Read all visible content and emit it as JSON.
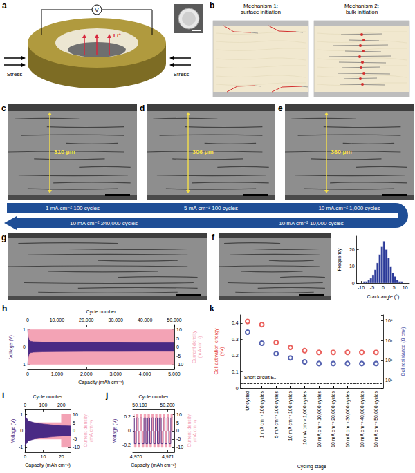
{
  "panels": [
    {
      "panel": "a",
      "type": "diagram",
      "labels": {
        "voltmeter": "V",
        "ion": "Li⁺",
        "stress_left": "Stress",
        "stress_right": "Stress"
      }
    },
    {
      "panel": "b",
      "type": "diagram",
      "titles": [
        "Mechanism 1: surface initiation",
        "Mechanism 2: bulk initiation"
      ]
    },
    {
      "panel": "c",
      "type": "micrograph",
      "thickness_label": "310 µm"
    },
    {
      "panel": "d",
      "type": "micrograph",
      "thickness_label": "306 µm"
    },
    {
      "panel": "e",
      "type": "micrograph",
      "thickness_label": "360 µm"
    },
    {
      "panel": "f",
      "type": "micrograph"
    },
    {
      "panel": "g",
      "type": "micrograph"
    }
  ],
  "cycling_sequence": [
    "1 mA cm⁻² 100 cycles",
    "5 mA cm⁻² 100 cycles",
    "10 mA cm⁻² 1,000 cycles",
    "10 mA cm⁻² 10,000 cycles",
    "10 mA cm⁻² 240,000 cycles"
  ],
  "chart_data": [
    {
      "type": "histogram",
      "xlabel": "Crack angle (°)",
      "ylabel": "Frequency",
      "color": "#2b3a99",
      "bins": [
        -9,
        -8,
        -7,
        -6,
        -5,
        -4,
        -3,
        -2,
        -1,
        0,
        1,
        2,
        3,
        4,
        5,
        6,
        7,
        8,
        9
      ],
      "counts": [
        1,
        1,
        2,
        3,
        5,
        8,
        12,
        17,
        22,
        25,
        20,
        15,
        10,
        6,
        4,
        2,
        1,
        1
      ],
      "xlim": [
        -12,
        12
      ],
      "xticks": [
        -10,
        -5,
        0,
        5,
        10
      ],
      "ylim": [
        0,
        28
      ],
      "yticks": [
        0,
        10,
        20
      ]
    },
    {
      "panel": "h",
      "type": "line",
      "xlabel": "Capacity (mAh cm⁻²)",
      "x2label": "Cycle number",
      "ylabel": "Voltage (V)",
      "y2label": "Current density (mA cm⁻²)",
      "xlim": [
        0,
        5000
      ],
      "xticks": [
        0,
        {
          "value": 1000,
          "label": "1,000"
        },
        {
          "value": 2000,
          "label": "2,000"
        },
        {
          "value": 3000,
          "label": "3,000"
        },
        {
          "value": 4000,
          "label": "4,000"
        },
        {
          "value": 5000,
          "label": "5,000"
        }
      ],
      "x2lim": [
        0,
        50000
      ],
      "x2ticks": [
        0,
        {
          "value": 10000,
          "label": "10,000"
        },
        {
          "value": 20000,
          "label": "20,000"
        },
        {
          "value": 30000,
          "label": "30,000"
        },
        {
          "value": 40000,
          "label": "40,000"
        },
        {
          "value": 50000,
          "label": "50,000"
        }
      ],
      "ylim": [
        -1.3,
        1.3
      ],
      "yticks": [
        -1,
        0,
        1
      ],
      "y2lim": [
        -13,
        13
      ],
      "y2ticks": [
        -10,
        -5,
        0,
        5,
        10
      ],
      "series": [
        {
          "type": "band",
          "axis": "y2",
          "color": "#f3a3b5",
          "x": [
            0,
            5000
          ],
          "upper": [
            10,
            10
          ],
          "lower": [
            -10,
            -10
          ]
        },
        {
          "type": "band",
          "axis": "y",
          "color": "#4a2a84",
          "x": [
            0,
            20,
            50,
            100,
            200,
            500,
            1000,
            2000,
            3000,
            4000,
            5000
          ],
          "upper": [
            1.05,
            0.6,
            0.4,
            0.33,
            0.3,
            0.28,
            0.27,
            0.26,
            0.26,
            0.25,
            0.25
          ],
          "lower": [
            -1.05,
            -0.6,
            -0.4,
            -0.33,
            -0.3,
            -0.28,
            -0.27,
            -0.26,
            -0.26,
            -0.25,
            -0.25
          ]
        }
      ]
    },
    {
      "panel": "i",
      "type": "line",
      "xlabel": "Capacity (mAh cm⁻²)",
      "x2label": "Cycle number",
      "ylabel": "Voltage (V)",
      "y2label": "Current density (mA cm⁻²)",
      "xlim": [
        0,
        25
      ],
      "xticks": [
        0,
        10,
        20
      ],
      "x2lim": [
        0,
        250
      ],
      "x2ticks": [
        0,
        100,
        200
      ],
      "ylim": [
        -1.3,
        1.3
      ],
      "yticks": [
        -1,
        0,
        1
      ],
      "y2lim": [
        -13,
        13
      ],
      "y2ticks": [
        -10,
        -5,
        0,
        5,
        10
      ],
      "series": [
        {
          "type": "band",
          "axis": "y2",
          "color": "#f3a3b5",
          "x": [
            0,
            2,
            2,
            20,
            20,
            25
          ],
          "upper": [
            1,
            1,
            5,
            5,
            10,
            10
          ],
          "lower": [
            -1,
            -1,
            -5,
            -5,
            -10,
            -10
          ]
        },
        {
          "type": "band",
          "axis": "y",
          "color": "#4a2a84",
          "x": [
            0,
            1,
            2,
            5,
            10,
            15,
            20,
            25
          ],
          "upper": [
            0.9,
            0.75,
            0.6,
            0.5,
            0.42,
            0.36,
            0.32,
            0.3
          ],
          "lower": [
            -0.9,
            -0.75,
            -0.6,
            -0.5,
            -0.42,
            -0.36,
            -0.32,
            -0.3
          ]
        }
      ]
    },
    {
      "panel": "j",
      "type": "line",
      "xlabel": "Capacity (mAh cm⁻²)",
      "x2label": "Cycle number",
      "ylabel": "Voltage (V)",
      "y2label": "Current density (mA cm⁻²)",
      "xlim": [
        4969.9,
        4971.2
      ],
      "xticks": [
        {
          "value": 4970,
          "label": "4,970"
        },
        {
          "value": 4971,
          "label": "4,971"
        }
      ],
      "x2lim": [
        50175,
        50205
      ],
      "x2ticks": [
        {
          "value": 50180,
          "label": "50,180"
        },
        {
          "value": 50200,
          "label": "50,200"
        }
      ],
      "ylim": [
        -0.3,
        0.3
      ],
      "yticks": [
        -0.2,
        0,
        0.2
      ],
      "y2lim": [
        -13,
        13
      ],
      "y2ticks": [
        -10,
        -5,
        0,
        5,
        10
      ],
      "series": [
        {
          "type": "area",
          "axis": "y2",
          "color": "#f3a3b5",
          "line_style": "step",
          "x": [
            4969.95,
            4970.01,
            4970.07,
            4970.13,
            4970.19,
            4970.25,
            4970.31,
            4970.37,
            4970.43,
            4970.49,
            4970.55,
            4970.61,
            4970.67,
            4970.73,
            4970.79,
            4970.85,
            4970.91,
            4970.97,
            4971.03,
            4971.09,
            4971.15
          ],
          "values": [
            10,
            -10,
            10,
            -10,
            10,
            -10,
            10,
            -10,
            10,
            -10,
            10,
            -10,
            10,
            -10,
            10,
            -10,
            10,
            -10,
            10,
            -10,
            10
          ]
        },
        {
          "type": "line",
          "axis": "y",
          "color": "#4a2a84",
          "line_style": "step",
          "x": [
            4969.95,
            4970.01,
            4970.07,
            4970.13,
            4970.19,
            4970.25,
            4970.31,
            4970.37,
            4970.43,
            4970.49,
            4970.55,
            4970.61,
            4970.67,
            4970.73,
            4970.79,
            4970.85,
            4970.91,
            4970.97,
            4971.03,
            4971.09,
            4971.15
          ],
          "values": [
            0.18,
            -0.18,
            0.18,
            -0.18,
            0.18,
            -0.18,
            0.18,
            -0.18,
            0.18,
            -0.18,
            0.18,
            -0.18,
            0.18,
            -0.18,
            0.18,
            -0.18,
            0.18,
            -0.18,
            0.18,
            -0.18,
            0.18
          ]
        }
      ]
    },
    {
      "panel": "k",
      "type": "scatter",
      "xlabel": "Cycling stage",
      "ylabel": "Cell activation energy (eV)",
      "y2label": "Cell resistance (Ω cm²)",
      "categories": [
        "Uncycled",
        "1 mA cm⁻² 100 cycles",
        "5 mA cm⁻² 100 cycles",
        "10 mA cm⁻² 100 cycles",
        "10 mA cm⁻² 1,000 cycles",
        "10 mA cm⁻² 10,000 cycles",
        "10 mA cm⁻² 20,000 cycles",
        "10 mA cm⁻² 30,000 cycles",
        "10 mA cm⁻² 40,000 cycles",
        "10 mA cm⁻² 50,000 cycles"
      ],
      "ylim": [
        0,
        0.45
      ],
      "yticks": [
        0,
        0.1,
        0.2,
        0.3,
        0.4
      ],
      "y2lim": [
        4,
        20000
      ],
      "y2ticks": [
        {
          "value": 10,
          "label": "10¹"
        },
        {
          "value": 100,
          "label": "10²"
        },
        {
          "value": 1000,
          "label": "10³"
        },
        {
          "value": 10000,
          "label": "10⁴"
        }
      ],
      "log": "y2",
      "series": [
        {
          "axis": "y",
          "color": "#e53935",
          "marker": "open_circle",
          "values": [
            0.41,
            0.39,
            0.28,
            0.25,
            0.23,
            0.22,
            0.22,
            0.22,
            0.22,
            0.22
          ]
        },
        {
          "axis": "y2",
          "color": "#2a3b9c",
          "marker": "open_circle",
          "values": [
            2700,
            740,
            220,
            135,
            85,
            70,
            70,
            70,
            70,
            70
          ]
        }
      ],
      "reference_line": {
        "label": "Short circuit Eₐ",
        "value": 0.03,
        "line_style": "dashed"
      }
    }
  ]
}
